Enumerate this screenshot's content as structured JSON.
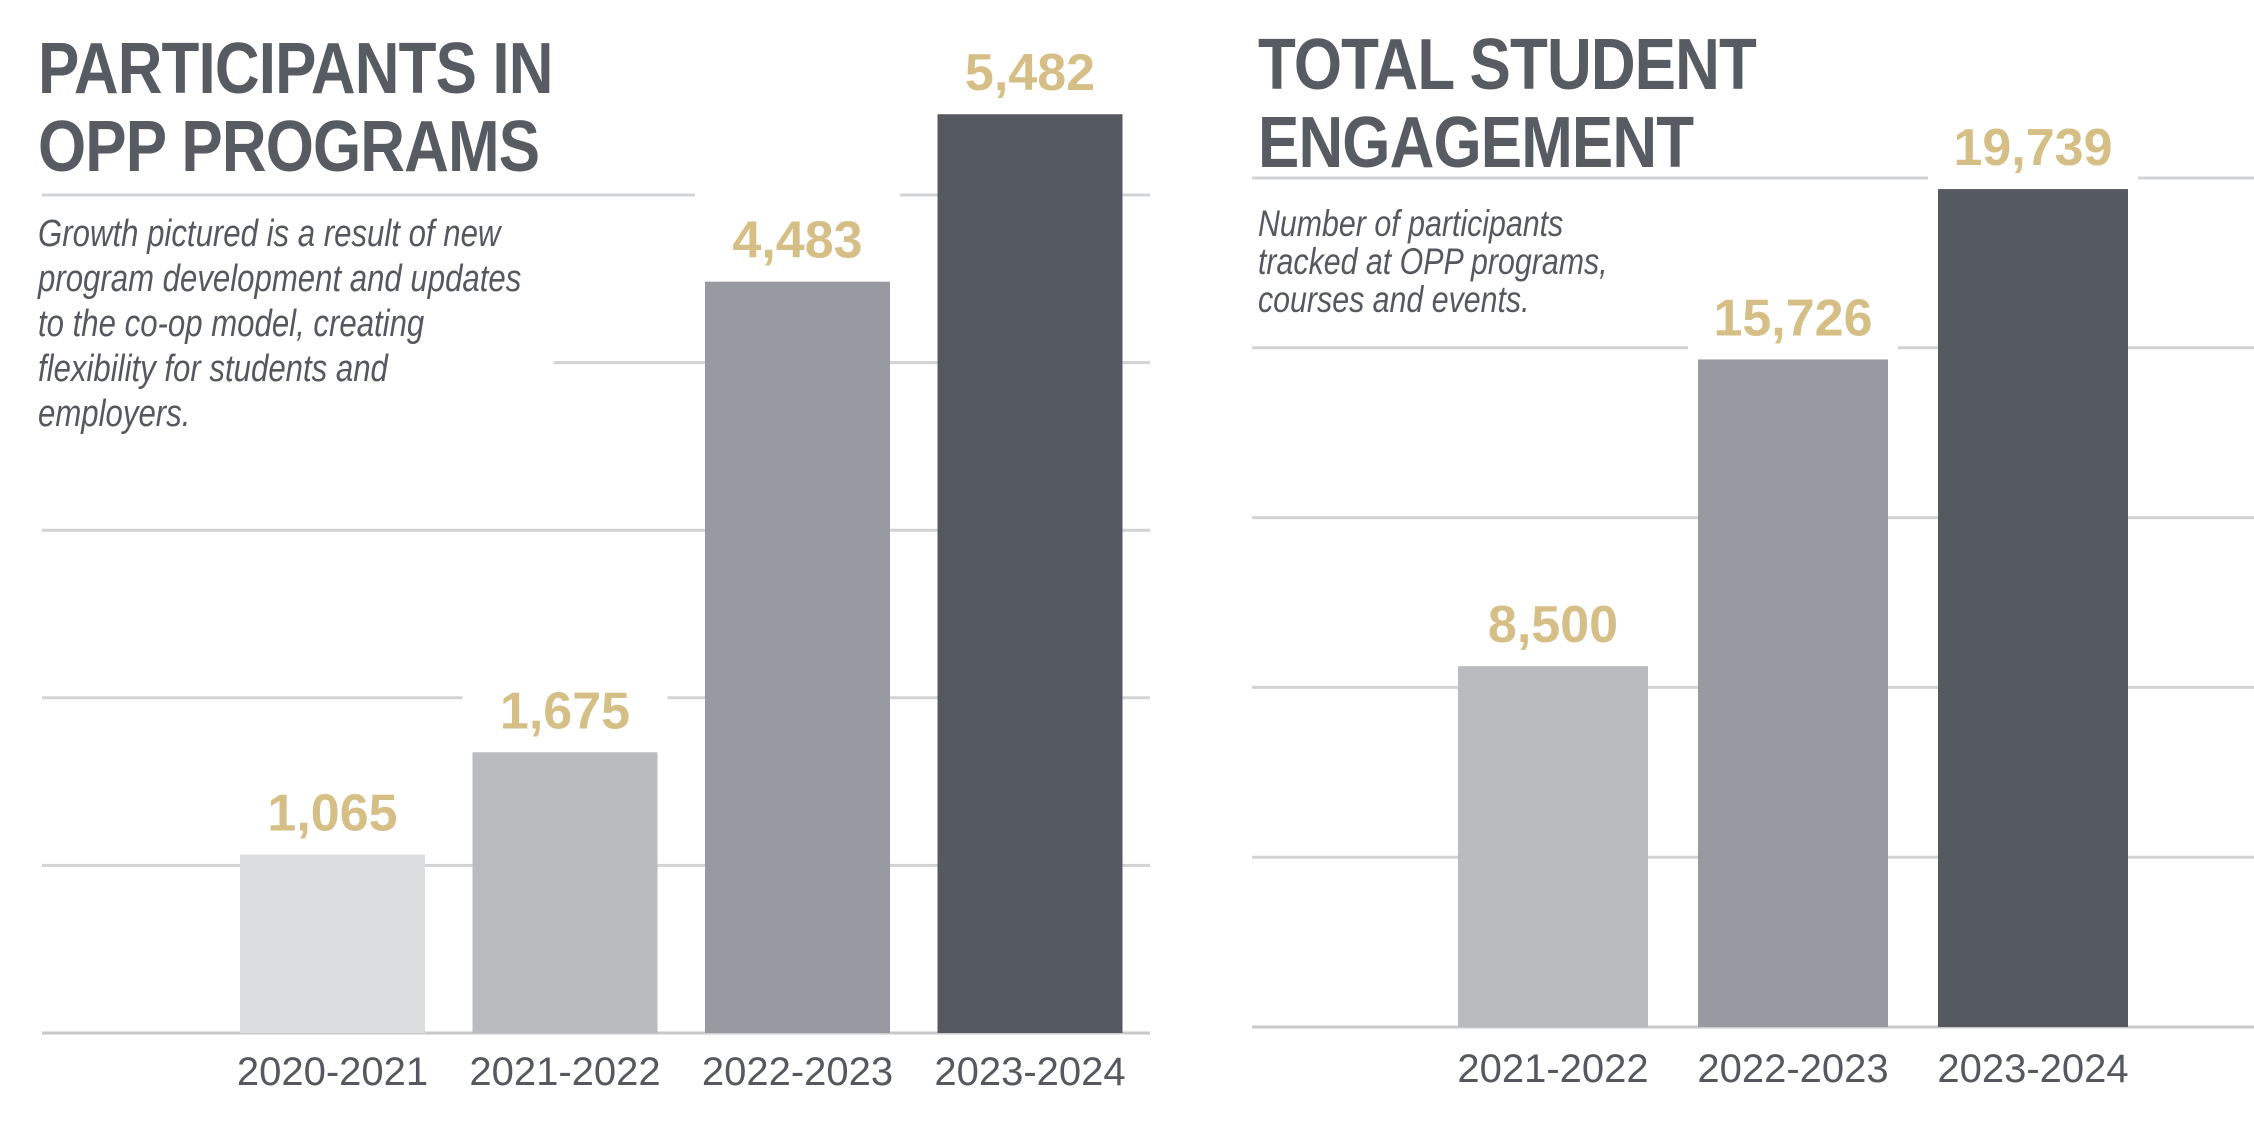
{
  "chart_data": [
    {
      "type": "bar",
      "title": "PARTICIPANTS IN OPP PROGRAMS",
      "title_lines": [
        "PARTICIPANTS IN",
        "OPP PROGRAMS"
      ],
      "subtitle": "Growth pictured is a result of new program development and updates to the co-op model, creating flexibility for students and employers.",
      "subtitle_lines": [
        "Growth pictured is a result of new",
        "program development and updates",
        "to the co-op model, creating",
        "flexibility for students and",
        "employers."
      ],
      "categories": [
        "2020-2021",
        "2021-2022",
        "2022-2023",
        "2023-2024"
      ],
      "values": [
        1065,
        1675,
        4483,
        5482
      ],
      "value_labels": [
        "1,065",
        "1,675",
        "4,483",
        "5,482"
      ],
      "bar_colors": [
        "#dcdddf",
        "#b9bbbf",
        "#979ba1",
        "#555960"
      ],
      "label_color": "#d6bf86",
      "ylim": [
        0,
        5000
      ],
      "grid": true,
      "xlabel": "",
      "ylabel": ""
    },
    {
      "type": "bar",
      "title": "TOTAL STUDENT ENGAGEMENT",
      "title_lines": [
        "TOTAL STUDENT",
        "ENGAGEMENT"
      ],
      "subtitle": "Number of participants tracked at OPP programs, courses and events.",
      "subtitle_lines": [
        "Number of participants",
        "tracked at OPP programs,",
        "courses and events."
      ],
      "categories": [
        "2021-2022",
        "2022-2023",
        "2023-2024"
      ],
      "values": [
        8500,
        15726,
        19739
      ],
      "value_labels": [
        "8,500",
        "15,726",
        "19,739"
      ],
      "bar_colors": [
        "#b9bbbf",
        "#979ba1",
        "#555960"
      ],
      "label_color": "#d6bf86",
      "ylim": [
        0,
        20000
      ],
      "grid": true,
      "xlabel": "",
      "ylabel": ""
    }
  ]
}
